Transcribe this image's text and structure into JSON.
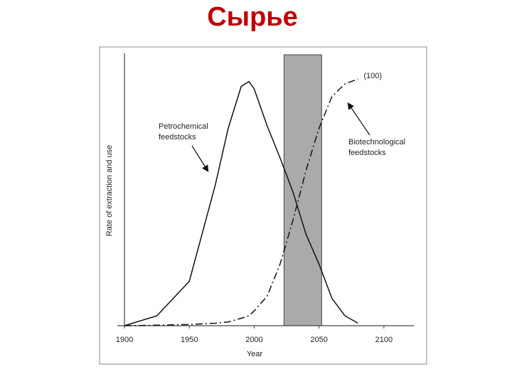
{
  "chart_data": {
    "type": "line",
    "title": "Сырье",
    "x_label": "Year",
    "y_label": "Rate of extraction and use",
    "x": [
      1900,
      1925,
      1950,
      1970,
      1980,
      1990,
      1996,
      2000,
      2010,
      2020,
      2030,
      2040,
      2050,
      2060,
      2070,
      2080
    ],
    "series": [
      {
        "name": "Petrochemical feedstocks",
        "color": "#111111",
        "dash": "solid",
        "values": [
          0,
          4,
          18,
          57,
          80,
          97,
          99,
          96,
          81,
          68,
          54,
          37,
          25,
          11,
          4,
          1
        ]
      },
      {
        "name": "Biotechnological feedstocks",
        "color": "#111111",
        "dash": "dashdot",
        "values": [
          0,
          0.2,
          0.5,
          1,
          1.5,
          3,
          4,
          6,
          12,
          25,
          43,
          63,
          80,
          93,
          98,
          100
        ]
      }
    ],
    "end_label": "(100)",
    "shaded_range": [
      2023,
      2052
    ],
    "xlim": [
      1900,
      2122
    ],
    "xticks": [
      1900,
      1950,
      2000,
      2050,
      2100
    ],
    "ylim": [
      0,
      113
    ]
  }
}
